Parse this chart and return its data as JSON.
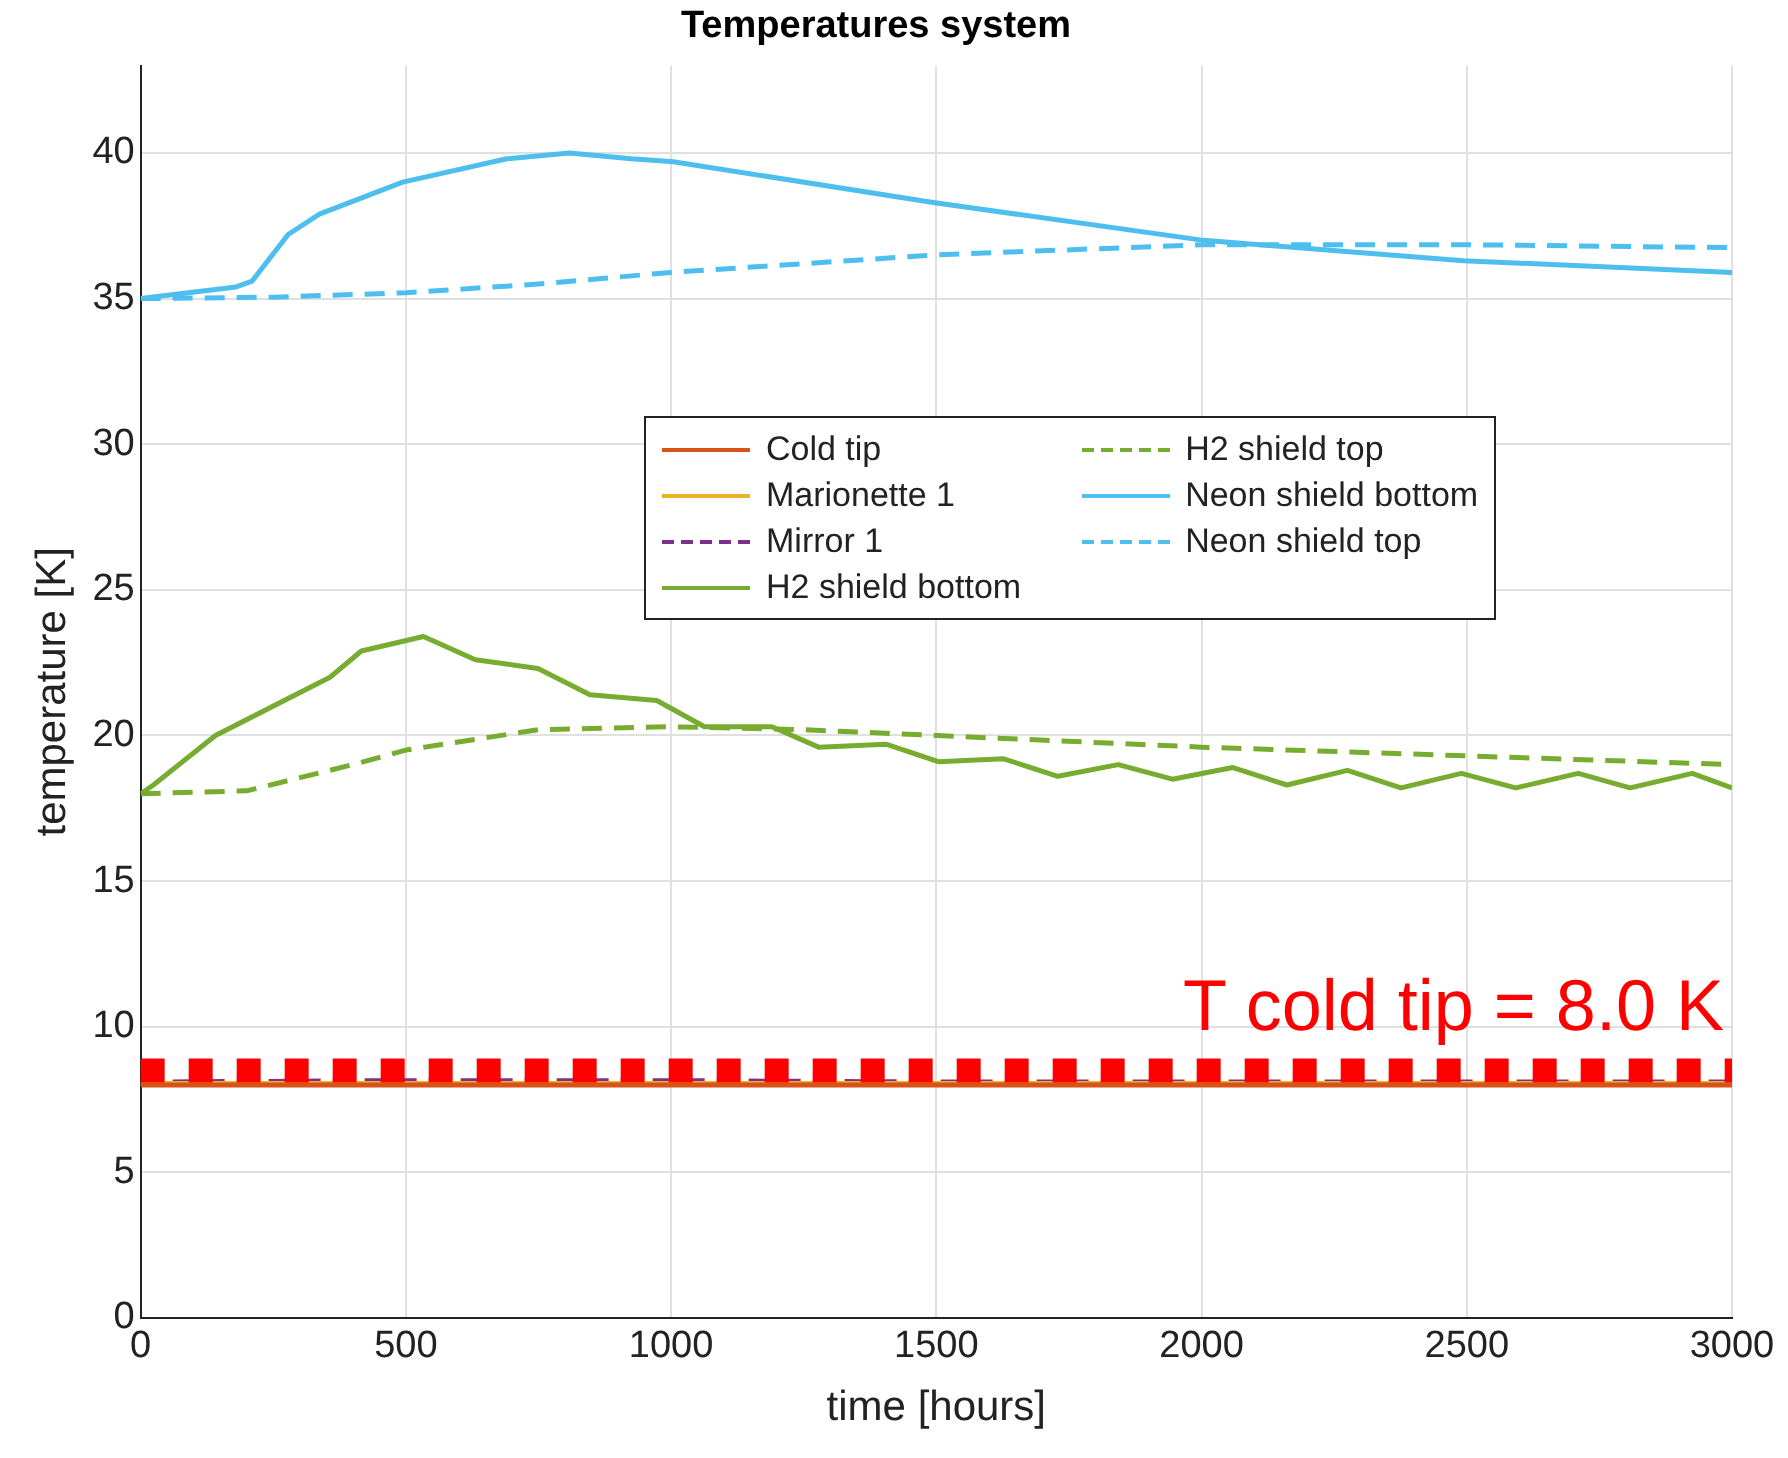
{
  "chart_data": {
    "type": "line",
    "title": "Temperatures system",
    "xlabel": "time [hours]",
    "ylabel": "temperature [K]",
    "xlim": [
      0,
      3000
    ],
    "xticks": [
      0,
      500,
      1000,
      1500,
      2000,
      2500,
      3000
    ],
    "ylim": [
      0,
      43
    ],
    "yticks": [
      0,
      5,
      10,
      15,
      20,
      25,
      30,
      35,
      40
    ],
    "grid": true,
    "legend": "right",
    "marker": "none",
    "series": [
      {
        "name": "Cold tip",
        "color": "#d95319",
        "line_style": "solid",
        "x": [
          0,
          3000
        ],
        "values": [
          8.0,
          8.0
        ]
      },
      {
        "name": "Marionette 1",
        "color": "#edb120",
        "line_style": "solid",
        "x": [
          0,
          3000
        ],
        "values": [
          8.05,
          8.05
        ]
      },
      {
        "name": "Mirror 1",
        "color": "#7e2f8e",
        "line_style": "dashed",
        "x": [
          0,
          500,
          1000,
          1500,
          3000
        ],
        "values": [
          8.1,
          8.15,
          8.15,
          8.1,
          8.1
        ]
      },
      {
        "name": "H2 shield bottom",
        "color": "#77ac30",
        "line_style": "solid",
        "x": [
          0,
          24,
          141,
          357,
          416,
          533,
          631,
          749,
          847,
          973,
          1063,
          1190,
          1278,
          1405,
          1504,
          1627,
          1729,
          1843,
          1945,
          2059,
          2161,
          2275,
          2376,
          2490,
          2592,
          2710,
          2808,
          2925,
          3000
        ],
        "values": [
          18.0,
          18.3,
          20.0,
          22.0,
          22.9,
          23.4,
          22.6,
          22.3,
          21.4,
          21.2,
          20.3,
          20.3,
          19.6,
          19.7,
          19.1,
          19.2,
          18.6,
          19.0,
          18.5,
          18.9,
          18.3,
          18.8,
          18.2,
          18.7,
          18.2,
          18.7,
          18.2,
          18.7,
          18.2
        ]
      },
      {
        "name": "H2 shield top",
        "color": "#77ac30",
        "line_style": "dashed",
        "x": [
          0,
          200,
          400,
          500,
          750,
          1000,
          1250,
          1500,
          2000,
          2500,
          3000
        ],
        "values": [
          18.0,
          18.1,
          19.0,
          19.5,
          20.2,
          20.3,
          20.2,
          20.0,
          19.6,
          19.3,
          19.0
        ]
      },
      {
        "name": "Neon shield bottom",
        "color": "#4dbeee",
        "line_style": "solid",
        "x": [
          0,
          180,
          210,
          278,
          337,
          494,
          690,
          808,
          925,
          1004,
          1494,
          2004,
          2494,
          3000
        ],
        "values": [
          35.0,
          35.4,
          35.6,
          37.2,
          37.9,
          39.0,
          39.8,
          40.0,
          39.8,
          39.7,
          38.3,
          37.0,
          36.3,
          35.9
        ]
      },
      {
        "name": "Neon shield top",
        "color": "#4dbeee",
        "line_style": "dashed",
        "x": [
          0,
          250,
          500,
          750,
          1000,
          1500,
          2000,
          2500,
          3000
        ],
        "values": [
          35.0,
          35.05,
          35.2,
          35.5,
          35.9,
          36.5,
          36.85,
          36.85,
          36.75
        ]
      }
    ],
    "ref_lines": [
      {
        "axis": "y",
        "value": 8.5,
        "color": "#ff0000",
        "line_style": "dotted"
      }
    ],
    "annotations": [
      "T cold tip = 8.0 K"
    ]
  }
}
